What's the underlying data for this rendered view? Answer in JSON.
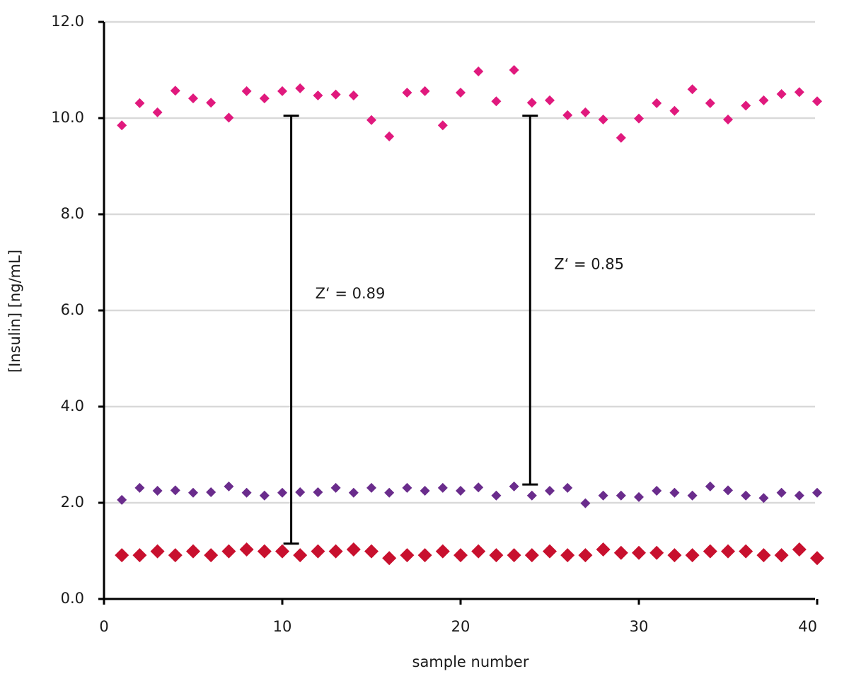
{
  "chart_data": {
    "type": "scatter",
    "xlabel": "sample number",
    "ylabel": "[Insulin] [ng/mL]",
    "xlim": [
      0,
      40
    ],
    "ylim": [
      0,
      12
    ],
    "xticks": [
      0,
      10,
      20,
      30,
      40
    ],
    "yticks": [
      {
        "value": 0,
        "label": "0.0"
      },
      {
        "value": 2,
        "label": "2.0"
      },
      {
        "value": 4,
        "label": "4.0"
      },
      {
        "value": 6,
        "label": "6.0"
      },
      {
        "value": 8,
        "label": "8.0"
      },
      {
        "value": 10,
        "label": "10.0"
      },
      {
        "value": 12,
        "label": "12.0"
      }
    ],
    "grid": true,
    "x": [
      1,
      2,
      3,
      4,
      5,
      6,
      7,
      8,
      9,
      10,
      11,
      12,
      13,
      14,
      15,
      16,
      17,
      18,
      19,
      20,
      21,
      22,
      23,
      24,
      25,
      26,
      27,
      28,
      29,
      30,
      31,
      32,
      33,
      34,
      35,
      36,
      37,
      38,
      39,
      40
    ],
    "series": [
      {
        "color": "#e0197d",
        "marker_size": 7,
        "values": [
          9.85,
          10.31,
          10.12,
          10.57,
          10.41,
          10.32,
          10.01,
          10.56,
          10.41,
          10.56,
          10.62,
          10.47,
          10.49,
          10.47,
          9.96,
          9.62,
          10.53,
          10.56,
          9.85,
          10.53,
          10.97,
          10.35,
          11.0,
          10.32,
          10.37,
          10.06,
          10.12,
          9.97,
          9.59,
          9.99,
          10.31,
          10.15,
          10.6,
          10.31,
          9.97,
          10.26,
          10.37,
          10.5,
          10.54,
          10.35
        ]
      },
      {
        "color": "#6a2c8c",
        "marker_size": 7,
        "values": [
          2.06,
          2.31,
          2.25,
          2.26,
          2.21,
          2.22,
          2.34,
          2.21,
          2.15,
          2.21,
          2.22,
          2.22,
          2.31,
          2.21,
          2.31,
          2.21,
          2.31,
          2.25,
          2.31,
          2.25,
          2.32,
          2.15,
          2.34,
          2.15,
          2.25,
          2.31,
          1.99,
          2.15,
          2.15,
          2.12,
          2.25,
          2.21,
          2.15,
          2.34,
          2.26,
          2.15,
          2.1,
          2.21,
          2.15,
          2.21
        ]
      },
      {
        "color": "#c8102e",
        "marker_size": 10,
        "values": [
          0.91,
          0.91,
          0.99,
          0.91,
          0.99,
          0.91,
          0.99,
          1.03,
          0.99,
          0.99,
          0.91,
          0.99,
          0.99,
          1.03,
          0.99,
          0.85,
          0.91,
          0.91,
          0.99,
          0.91,
          0.99,
          0.91,
          0.91,
          0.91,
          0.99,
          0.91,
          0.91,
          1.03,
          0.96,
          0.96,
          0.96,
          0.91,
          0.91,
          0.99,
          0.99,
          0.99,
          0.91,
          0.91,
          1.03,
          0.85
        ]
      }
    ],
    "intervals": [
      {
        "x": 10.5,
        "low": 1.15,
        "high": 10.05,
        "label": "Zʻ = 0.89"
      },
      {
        "x": 23.9,
        "low": 2.38,
        "high": 10.05,
        "label": "Zʻ = 0.85"
      }
    ]
  }
}
